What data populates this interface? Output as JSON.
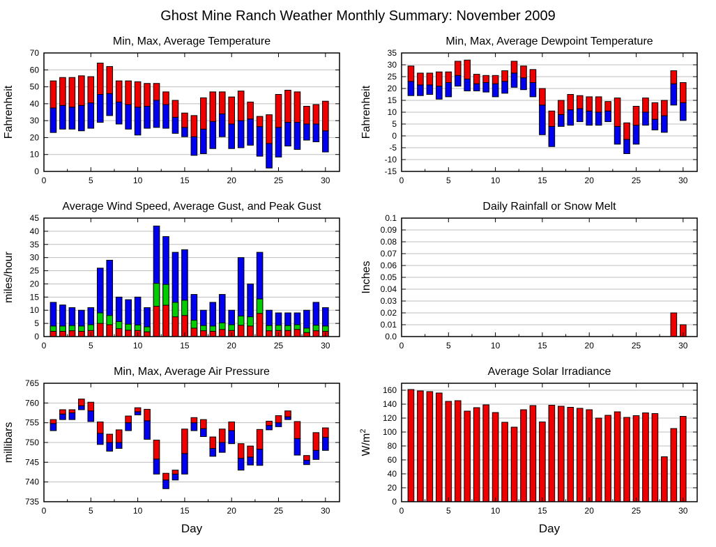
{
  "page": {
    "title": "Ghost Mine Ranch Weather Monthly Summary: November 2009"
  },
  "colors": {
    "red": "#ee0000",
    "blue": "#0000ee",
    "green": "#00cc00",
    "grid": "#bdbdbd",
    "frame": "#000000",
    "bar_outline": "#000000"
  },
  "chart_data": [
    {
      "id": "temperature",
      "type": "range-bar",
      "title": "Min, Max, Average Temperature",
      "ylabel": "Fahrenheit",
      "xlabel": "",
      "ylim": [
        0,
        70
      ],
      "yticks": [
        0,
        10,
        20,
        30,
        40,
        50,
        60,
        70
      ],
      "xlim": [
        0,
        31.5
      ],
      "xticks": [
        0,
        5,
        10,
        15,
        20,
        25,
        30
      ],
      "xminor_step": 2.5,
      "lower_color": "blue",
      "upper_color": "red",
      "min": [
        23,
        25,
        25,
        24,
        25.5,
        29,
        33,
        28,
        25,
        21.5,
        25.5,
        26,
        25.5,
        22.5,
        20.5,
        9.5,
        10.5,
        13.5,
        20.5,
        13.5,
        14,
        15.5,
        9,
        2,
        8.5,
        15,
        13,
        18.5,
        17.5,
        11.5
      ],
      "avg": [
        37.5,
        39,
        38,
        39,
        40.5,
        45.5,
        46,
        41,
        39.5,
        38,
        38.5,
        42,
        39.5,
        32,
        26,
        20.5,
        25,
        29.5,
        34,
        28,
        30,
        31,
        26.5,
        16.5,
        26,
        29,
        29,
        28,
        28,
        24
      ],
      "max": [
        53.5,
        55.5,
        55.5,
        56.5,
        56,
        64,
        62,
        53.5,
        53.5,
        53,
        52,
        52,
        47,
        42,
        34.5,
        33,
        43.5,
        47,
        47,
        44,
        47.5,
        41,
        32.5,
        33.5,
        45.5,
        48,
        47,
        38.5,
        39.5,
        41.5
      ]
    },
    {
      "id": "dewpoint",
      "type": "range-bar",
      "title": "Min, Max, Average Dewpoint Temperature",
      "ylabel": "Fahrenheit",
      "xlabel": "",
      "ylim": [
        -15,
        35
      ],
      "yticks": [
        -15,
        -10,
        -5,
        0,
        5,
        10,
        15,
        20,
        25,
        30,
        35
      ],
      "xlim": [
        0,
        31.5
      ],
      "xticks": [
        0,
        5,
        10,
        15,
        20,
        25,
        30
      ],
      "xminor_step": 2.5,
      "lower_color": "blue",
      "upper_color": "red",
      "min": [
        17,
        17,
        17.5,
        15.5,
        16.5,
        21,
        19,
        19,
        18.5,
        16.5,
        18,
        20.5,
        19.5,
        16.5,
        0.5,
        -4.5,
        4,
        4.5,
        6,
        4.5,
        4.5,
        6,
        -3.5,
        -7.5,
        -3.5,
        4.5,
        2.5,
        1.5,
        13,
        6.5
      ],
      "avg": [
        23,
        21.5,
        21.5,
        21,
        22.5,
        25.5,
        24,
        22,
        22.5,
        22,
        23,
        26.5,
        24.5,
        22.5,
        13,
        4,
        9,
        11,
        11.5,
        10.5,
        10,
        10.5,
        4,
        -1.5,
        4.5,
        10,
        7,
        8.5,
        22,
        14
      ],
      "max": [
        29.5,
        26.5,
        26.5,
        27,
        27,
        31.5,
        32,
        26,
        25.5,
        25.5,
        27.5,
        31.5,
        29.5,
        28,
        20,
        10.5,
        15,
        17.5,
        17,
        16.5,
        16.5,
        14.5,
        16,
        5.5,
        12.5,
        16,
        14,
        15,
        27.5,
        22.5
      ]
    },
    {
      "id": "wind",
      "type": "overlay-bar",
      "title": "Average Wind Speed, Average Gust, and Peak Gust",
      "ylabel": "miles/hour",
      "xlabel": "",
      "ylim": [
        0,
        45
      ],
      "yticks": [
        0,
        5,
        10,
        15,
        20,
        25,
        30,
        35,
        40,
        45
      ],
      "xlim": [
        0,
        31.5
      ],
      "xticks": [
        0,
        5,
        10,
        15,
        20,
        25,
        30
      ],
      "xminor_step": 2.5,
      "series": [
        {
          "name": "Peak Gust",
          "color": "blue",
          "values": [
            13,
            12,
            11,
            10,
            11,
            26,
            29,
            15,
            14,
            15,
            11,
            42,
            38,
            32,
            33,
            16,
            10,
            13,
            16,
            10,
            30,
            20,
            32,
            10,
            9,
            9,
            9,
            10,
            13,
            11
          ]
        },
        {
          "name": "Average Gust",
          "color": "green",
          "values": [
            4,
            4,
            4.2,
            4,
            4.5,
            9,
            8,
            5.7,
            4.7,
            4.4,
            3.7,
            20.2,
            19.8,
            13,
            13.8,
            6.2,
            4.2,
            4,
            5.2,
            4.5,
            7.8,
            7.5,
            14.3,
            4.2,
            4.3,
            4.2,
            4.5,
            3.2,
            4.3,
            4
          ]
        },
        {
          "name": "Average Wind Speed",
          "color": "red",
          "values": [
            2,
            2,
            2.2,
            2,
            2.3,
            5,
            4.5,
            3,
            2.4,
            2.3,
            1.8,
            11.5,
            11.9,
            7.5,
            8,
            3.2,
            2.2,
            2,
            2.7,
            2.3,
            4.3,
            4,
            8.8,
            2.2,
            2.3,
            2.3,
            2.7,
            1.5,
            2.2,
            2
          ]
        }
      ]
    },
    {
      "id": "rainfall",
      "type": "bar",
      "title": "Daily Rainfall or Snow Melt",
      "ylabel": "Inches",
      "xlabel": "",
      "ylim": [
        0,
        0.1
      ],
      "yticks": [
        0,
        0.01,
        0.02,
        0.03,
        0.04,
        0.05,
        0.06,
        0.07,
        0.08,
        0.09,
        0.1
      ],
      "ytick_labels": [
        "0.0",
        "0.01",
        "0.02",
        "0.03",
        "0.04",
        "0.05",
        "0.06",
        "0.07",
        "0.08",
        "0.09",
        "0.1"
      ],
      "xlim": [
        0,
        31.5
      ],
      "xticks": [
        0,
        5,
        10,
        15,
        20,
        25,
        30
      ],
      "xminor_step": 2.5,
      "bar_color": "red",
      "values": [
        0,
        0,
        0,
        0,
        0,
        0,
        0,
        0,
        0,
        0,
        0,
        0,
        0,
        0,
        0,
        0,
        0,
        0,
        0,
        0,
        0,
        0,
        0,
        0,
        0,
        0,
        0,
        0,
        0.02,
        0.01
      ]
    },
    {
      "id": "pressure",
      "type": "range-bar",
      "title": "Min, Max, Average Air Pressure",
      "ylabel": "millibars",
      "xlabel": "Day",
      "ylim": [
        735,
        765
      ],
      "yticks": [
        735,
        740,
        745,
        750,
        755,
        760,
        765
      ],
      "xlim": [
        0,
        31.5
      ],
      "xticks": [
        0,
        5,
        10,
        15,
        20,
        25,
        30
      ],
      "xminor_step": 2.5,
      "lower_color": "blue",
      "upper_color": "red",
      "min": [
        753,
        755.8,
        755.8,
        758.3,
        755.3,
        749.5,
        747.8,
        748.5,
        753,
        757,
        750.8,
        742,
        738.3,
        740.5,
        742,
        753,
        751.5,
        746.5,
        747.5,
        749.7,
        743,
        744.3,
        744.2,
        753.2,
        754,
        755.8,
        746.8,
        744.4,
        745.7,
        748
      ],
      "avg": [
        754.8,
        757.2,
        757.5,
        759.3,
        758,
        752.3,
        750,
        750,
        755,
        757.8,
        755.5,
        745.8,
        740.5,
        742,
        747.2,
        755,
        753.5,
        748.5,
        750,
        753,
        746,
        746.3,
        748.3,
        754.3,
        755,
        756.5,
        751,
        745.5,
        748,
        751.3
      ],
      "max": [
        755.8,
        758.3,
        758.3,
        761,
        760.2,
        755.2,
        752.1,
        753.2,
        756.7,
        758.8,
        758.4,
        750.6,
        742.2,
        743,
        753.4,
        756.3,
        755.8,
        751.4,
        753.4,
        755.2,
        749.7,
        749.1,
        753.3,
        755.4,
        756.8,
        758,
        755.3,
        746.7,
        752.5,
        753.7
      ]
    },
    {
      "id": "solar",
      "type": "bar",
      "title": "Average Solar Irradiance",
      "ylabel": "W/m",
      "ylabel_superscript": "2",
      "xlabel": "Day",
      "ylim": [
        0,
        170
      ],
      "yticks": [
        0,
        20,
        40,
        60,
        80,
        100,
        120,
        140,
        160
      ],
      "xlim": [
        0,
        31.5
      ],
      "xticks": [
        0,
        5,
        10,
        15,
        20,
        25,
        30
      ],
      "xminor_step": 2.5,
      "bar_color": "red",
      "values": [
        161,
        159,
        158,
        156,
        144,
        145,
        130,
        135,
        139,
        128,
        114,
        107,
        132,
        138,
        114.5,
        138.5,
        137,
        135.5,
        134,
        132,
        120,
        124,
        129,
        121,
        123.5,
        127.5,
        126.5,
        64.5,
        105,
        122.5
      ]
    }
  ]
}
